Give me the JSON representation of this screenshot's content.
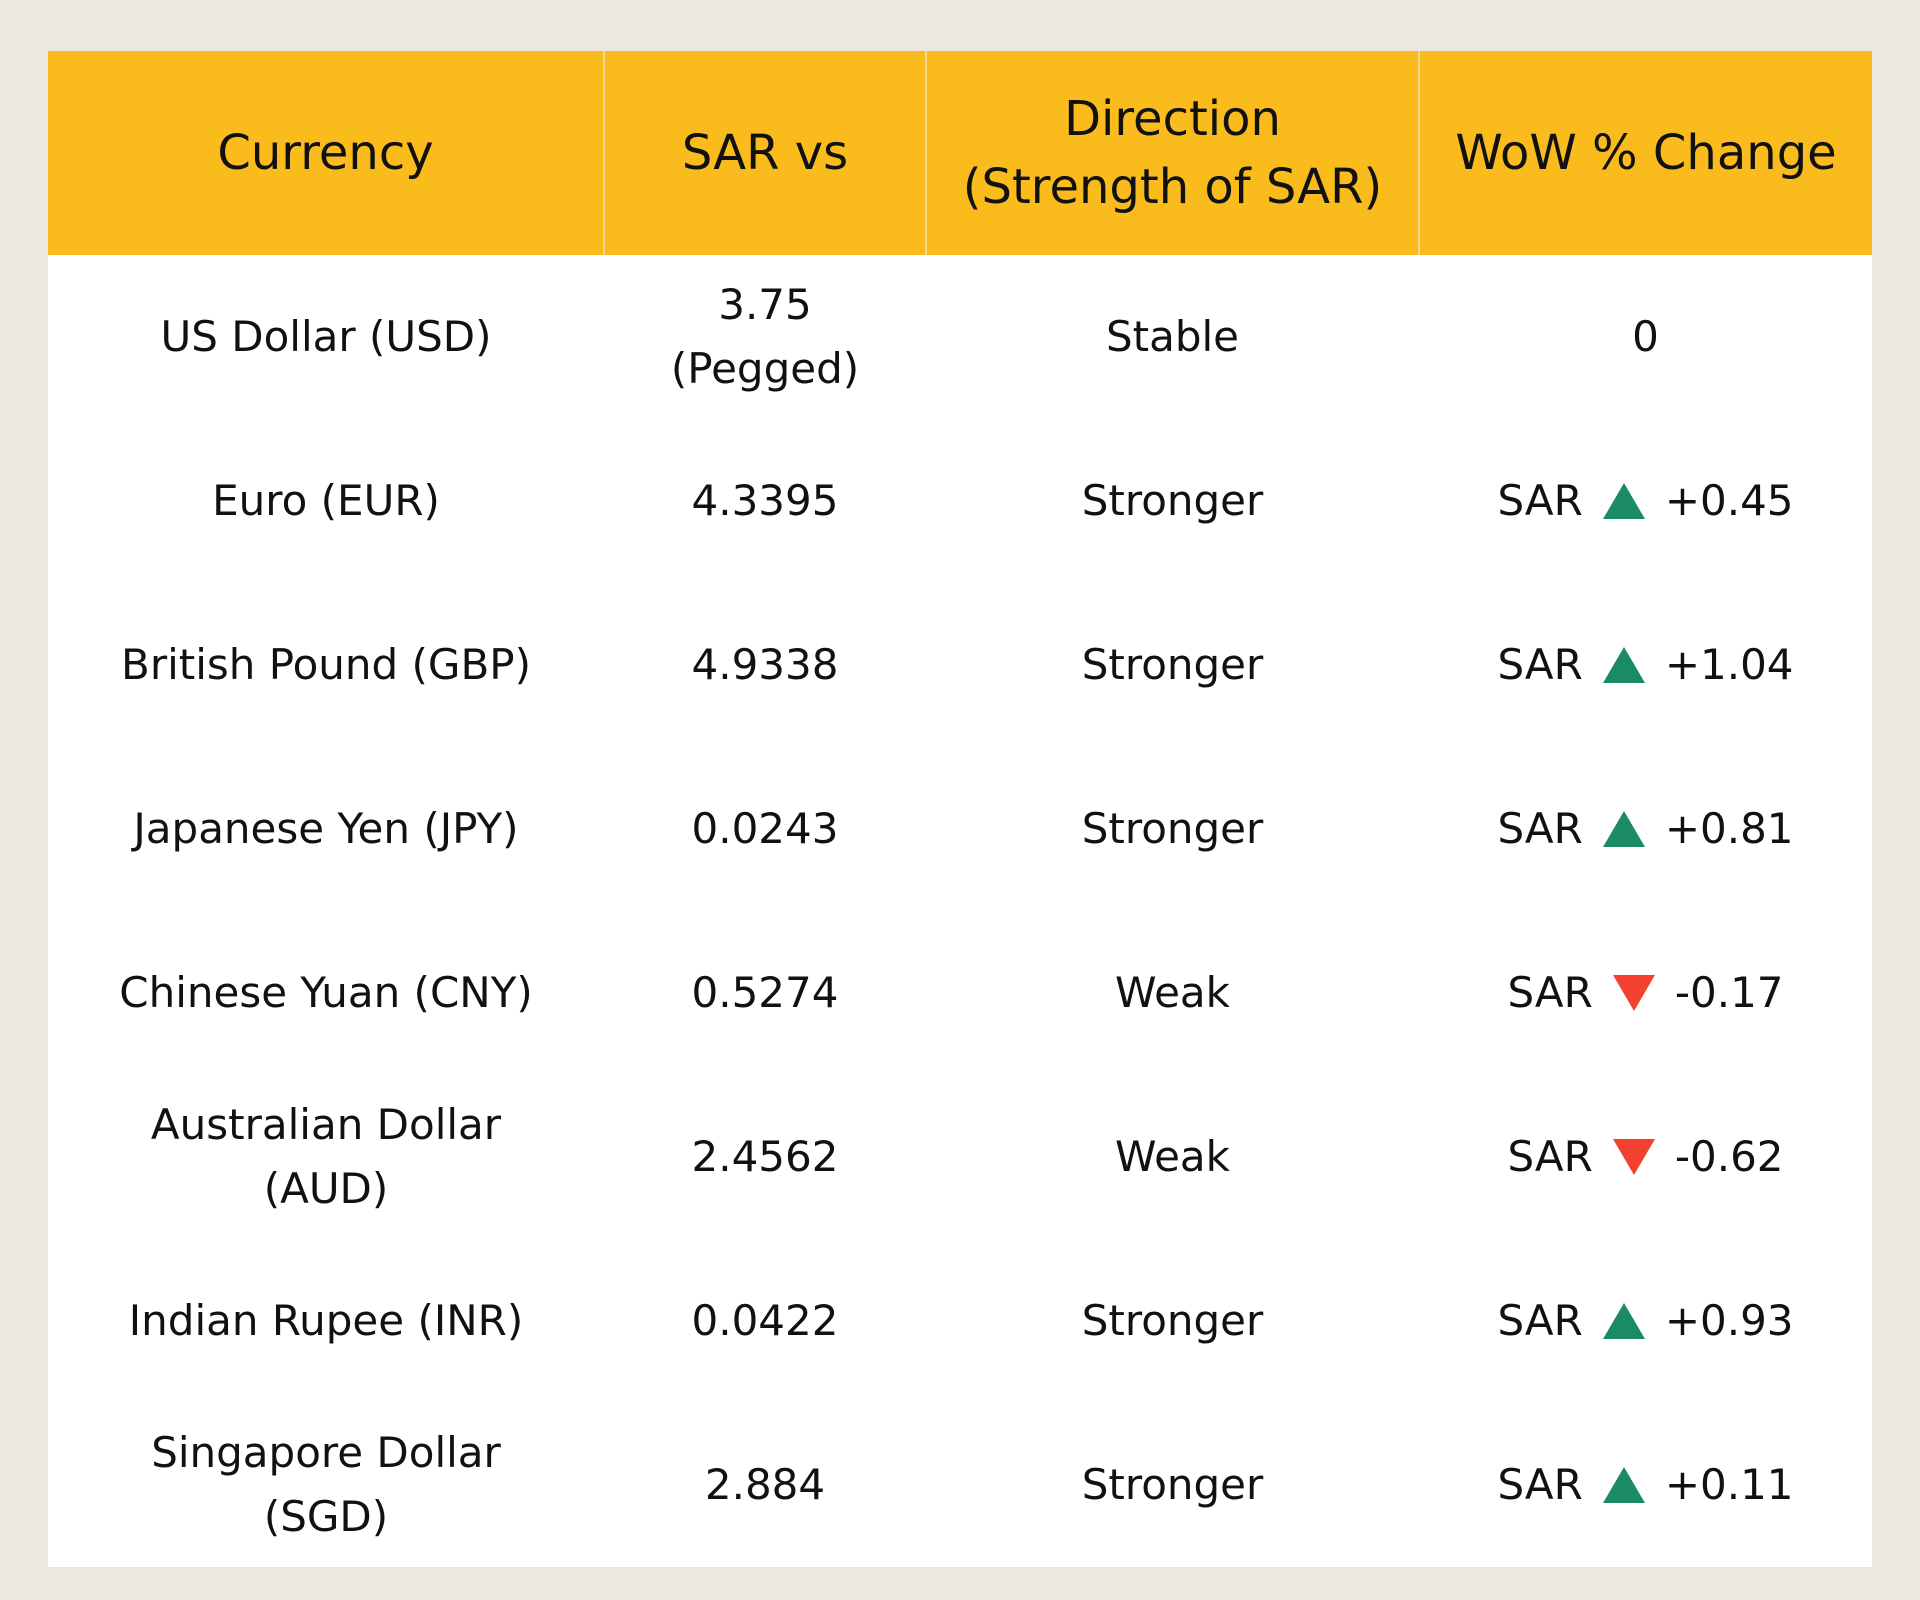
{
  "table": {
    "header": [
      [
        "Currency"
      ],
      [
        "SAR vs"
      ],
      [
        "Direction",
        "(Strength of SAR)"
      ],
      [
        "WoW % Change"
      ]
    ],
    "up_color": "#1a8a67",
    "down_color": "#f2412e",
    "rows": [
      [
        [
          "US Dollar (USD)"
        ],
        [
          "3.75",
          "(Pegged)"
        ],
        [
          "Stable"
        ],
        {
          "value": "0"
        }
      ],
      [
        [
          "Euro (EUR)"
        ],
        [
          "4.3395"
        ],
        [
          "Stronger"
        ],
        {
          "prefix": "SAR",
          "trend": "up",
          "value": "+0.45"
        }
      ],
      [
        [
          "British Pound (GBP)"
        ],
        [
          "4.9338"
        ],
        [
          "Stronger"
        ],
        {
          "prefix": "SAR",
          "trend": "up",
          "value": "+1.04"
        }
      ],
      [
        [
          "Japanese Yen (JPY)"
        ],
        [
          "0.0243"
        ],
        [
          "Stronger"
        ],
        {
          "prefix": "SAR",
          "trend": "up",
          "value": "+0.81"
        }
      ],
      [
        [
          "Chinese Yuan (CNY)"
        ],
        [
          "0.5274"
        ],
        [
          "Weak"
        ],
        {
          "prefix": "SAR",
          "trend": "down",
          "value": "-0.17"
        }
      ],
      [
        [
          "Australian Dollar",
          "(AUD)"
        ],
        [
          "2.4562"
        ],
        [
          "Weak"
        ],
        {
          "prefix": "SAR",
          "trend": "down",
          "value": "-0.62"
        }
      ],
      [
        [
          "Indian Rupee (INR)"
        ],
        [
          "0.0422"
        ],
        [
          "Stronger"
        ],
        {
          "prefix": "SAR",
          "trend": "up",
          "value": "+0.93"
        }
      ],
      [
        [
          "Singapore Dollar",
          "(SGD)"
        ],
        [
          "2.884"
        ],
        [
          "Stronger"
        ],
        {
          "prefix": "SAR",
          "trend": "up",
          "value": "+0.11"
        }
      ]
    ]
  }
}
